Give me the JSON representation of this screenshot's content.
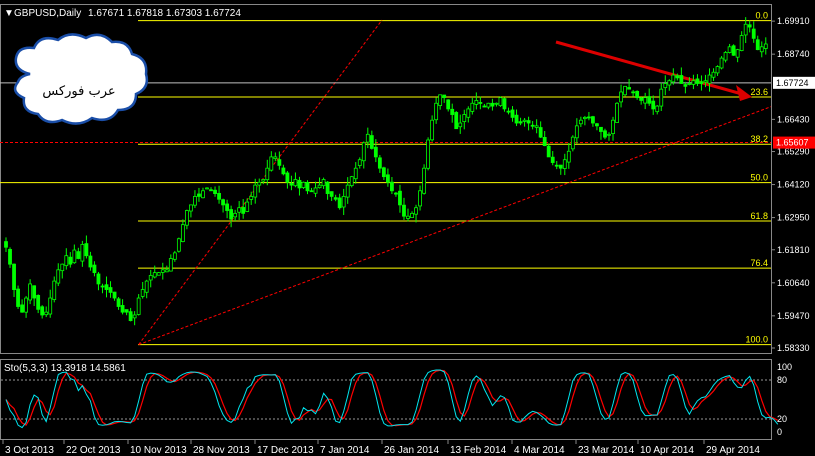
{
  "header": {
    "menu_arrow": "▼",
    "symbol": "GBPUSD,Daily",
    "ohlc": "1.67671 1.67818 1.67303 1.67724"
  },
  "watermark": {
    "text": "عرب فوركس"
  },
  "colors": {
    "background": "#000000",
    "candle": "#00ff00",
    "fib": "#ffff00",
    "trend": "#ff0000",
    "stoch_main": "#00e5ee",
    "stoch_signal": "#ff0000",
    "current_price_label": "#ff0000",
    "arrow": "#dd0000"
  },
  "price_axis": {
    "ticks": [
      "1.69910",
      "1.68740",
      "1.67724",
      "1.66430",
      "1.65290",
      "1.64120",
      "1.62950",
      "1.61810",
      "1.60640",
      "1.59470",
      "1.58330"
    ],
    "current_label": "1.67724",
    "red_label": "1.65607"
  },
  "fib_levels": [
    {
      "label": "0.0",
      "price": 1.6993
    },
    {
      "label": "23.6",
      "price": 1.6722
    },
    {
      "label": "38.2",
      "price": 1.6555
    },
    {
      "label": "50.0",
      "price": 1.6419
    },
    {
      "label": "61.8",
      "price": 1.6283
    },
    {
      "label": "76.4",
      "price": 1.6116
    },
    {
      "label": "100.0",
      "price": 1.5845
    }
  ],
  "stochastic": {
    "label": "Sto(5,3,3) 13.3918 14.5861",
    "ticks": [
      "100",
      "80",
      "20",
      "0"
    ]
  },
  "time_axis": {
    "labels": [
      "3 Oct 2013",
      "22 Oct 2013",
      "10 Nov 2013",
      "28 Nov 2013",
      "17 Dec 2013",
      "7 Jan 2014",
      "26 Jan 2014",
      "13 Feb 2014",
      "4 Mar 2014",
      "23 Mar 2014",
      "10 Apr 2014",
      "29 Apr 2014"
    ]
  },
  "chart_data": {
    "type": "candlestick",
    "symbol": "GBPUSD",
    "timeframe": "Daily",
    "ylim": [
      1.5833,
      1.6995
    ],
    "closes": [
      1.619,
      1.613,
      1.604,
      1.598,
      1.596,
      1.601,
      1.606,
      1.601,
      1.597,
      1.595,
      1.596,
      1.601,
      1.607,
      1.611,
      1.613,
      1.616,
      1.613,
      1.618,
      1.615,
      1.62,
      1.616,
      1.612,
      1.61,
      1.606,
      1.605,
      1.604,
      1.603,
      1.601,
      1.598,
      1.596,
      1.596,
      1.593,
      1.595,
      1.601,
      1.604,
      1.607,
      1.609,
      1.61,
      1.61,
      1.611,
      1.611,
      1.615,
      1.617,
      1.622,
      1.627,
      1.632,
      1.634,
      1.637,
      1.637,
      1.639,
      1.64,
      1.639,
      1.638,
      1.636,
      1.634,
      1.632,
      1.629,
      1.631,
      1.633,
      1.631,
      1.635,
      1.637,
      1.641,
      1.642,
      1.643,
      1.647,
      1.651,
      1.651,
      1.648,
      1.645,
      1.642,
      1.641,
      1.643,
      1.64,
      1.642,
      1.639,
      1.639,
      1.64,
      1.641,
      1.643,
      1.638,
      1.637,
      1.636,
      1.633,
      1.637,
      1.641,
      1.644,
      1.647,
      1.65,
      1.656,
      1.659,
      1.654,
      1.651,
      1.647,
      1.644,
      1.642,
      1.639,
      1.638,
      1.634,
      1.63,
      1.63,
      1.631,
      1.633,
      1.639,
      1.647,
      1.657,
      1.664,
      1.67,
      1.673,
      1.672,
      1.668,
      1.666,
      1.661,
      1.663,
      1.666,
      1.668,
      1.67,
      1.671,
      1.67,
      1.669,
      1.67,
      1.669,
      1.67,
      1.672,
      1.668,
      1.667,
      1.665,
      1.663,
      1.663,
      1.664,
      1.663,
      1.662,
      1.662,
      1.658,
      1.655,
      1.651,
      1.649,
      1.648,
      1.647,
      1.65,
      1.653,
      1.658,
      1.662,
      1.664,
      1.665,
      1.665,
      1.663,
      1.662,
      1.66,
      1.658,
      1.659,
      1.664,
      1.67,
      1.674,
      1.676,
      1.675,
      1.674,
      1.672,
      1.671,
      1.672,
      1.67,
      1.668,
      1.669,
      1.675,
      1.677,
      1.678,
      1.68,
      1.679,
      1.677,
      1.676,
      1.677,
      1.678,
      1.677,
      1.677,
      1.678,
      1.68,
      1.681,
      1.683,
      1.686,
      1.688,
      1.69,
      1.687,
      1.689,
      1.694,
      1.698,
      1.697,
      1.693,
      1.689,
      1.69,
      1.691,
      1.686,
      1.681,
      1.677
    ]
  }
}
